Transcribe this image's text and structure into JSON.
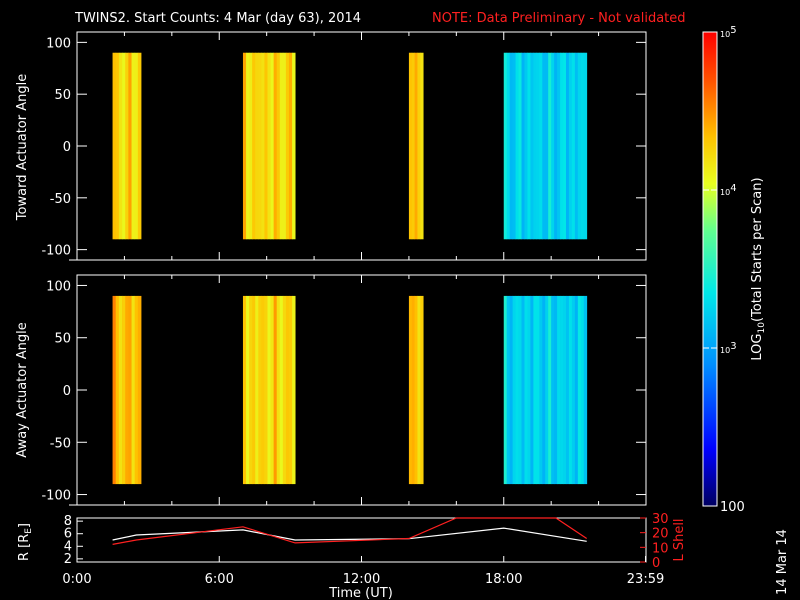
{
  "title": "TWINS2. Start Counts:  4 Mar (day  63), 2014",
  "note": "NOTE: Data Preliminary - Not validated",
  "stamp": "14 Mar 14",
  "colors": {
    "background": "#000000",
    "axes": "#ffffff",
    "note": "#ff2020",
    "line_r": "#ffffff",
    "line_l": "#ff2020"
  },
  "chart_data": [
    {
      "type": "heatmap",
      "id": "toward",
      "ylabel": "Toward Actuator Angle",
      "ylim": [
        -110,
        110
      ],
      "yticks": [
        100,
        50,
        0,
        -50,
        -100
      ],
      "xlim": [
        0,
        24
      ],
      "value_range": [
        -90,
        90
      ],
      "intervals_hours": [
        [
          1.5,
          2.7
        ],
        [
          7.0,
          9.2
        ],
        [
          14.0,
          14.6
        ],
        [
          18.0,
          21.5
        ]
      ],
      "dominant_log10_counts": [
        4.2,
        4.2,
        4.3,
        3.2
      ]
    },
    {
      "type": "heatmap",
      "id": "away",
      "ylabel": "Away Actuator Angle",
      "ylim": [
        -110,
        110
      ],
      "yticks": [
        100,
        50,
        0,
        -50,
        -100
      ],
      "xlim": [
        0,
        24
      ],
      "value_range": [
        -90,
        90
      ],
      "intervals_hours": [
        [
          1.5,
          2.7
        ],
        [
          7.0,
          9.2
        ],
        [
          14.0,
          14.6
        ],
        [
          18.0,
          21.5
        ]
      ],
      "dominant_log10_counts": [
        4.3,
        4.2,
        4.3,
        3.2
      ]
    },
    {
      "type": "line",
      "id": "orbit",
      "xlabel": "Time (UT)",
      "xticks": [
        "0:00",
        "6:00",
        "12:00",
        "18:00",
        "23:59"
      ],
      "xtick_hours": [
        0,
        6,
        12,
        18,
        23.98
      ],
      "ylabel_left": "R [R",
      "ylabel_left_sub": "E",
      "ylabel_left_end": "]",
      "ylabel_right": "L Shell",
      "ylim_left": [
        1.5,
        8.5
      ],
      "ylim_right": [
        0,
        30
      ],
      "yticks_left": [
        "8",
        "6",
        "4",
        "2"
      ],
      "yticks_left_values": [
        8,
        6,
        4,
        2
      ],
      "yticks_right": [
        "30",
        "20",
        "10",
        "0"
      ],
      "yticks_right_values": [
        30,
        20,
        10,
        0
      ],
      "series": [
        {
          "axis": "left",
          "x": [
            1.5,
            2.5,
            7.0,
            9.2,
            14.0,
            18.0,
            21.5
          ],
          "y": [
            5.0,
            5.8,
            6.6,
            5.0,
            5.2,
            6.9,
            4.8
          ]
        },
        {
          "axis": "right",
          "x": [
            1.5,
            2.5,
            7.0,
            9.2,
            14.0,
            16.0,
            20.2,
            21.5
          ],
          "y": [
            12,
            15,
            24,
            13,
            16,
            30,
            30,
            16
          ]
        }
      ]
    }
  ],
  "colorbar": {
    "label": "LOG",
    "label_sub": "10",
    "label_end": "(Total Starts per Scan)",
    "min_value": 100,
    "max_value": 100000,
    "ticks": [
      {
        "log": 5,
        "base": "10",
        "exp": "5"
      },
      {
        "log": 4,
        "base": "10",
        "exp": "4"
      },
      {
        "log": 3,
        "base": "10",
        "exp": "3"
      },
      {
        "log": 2,
        "text": "100"
      }
    ]
  }
}
